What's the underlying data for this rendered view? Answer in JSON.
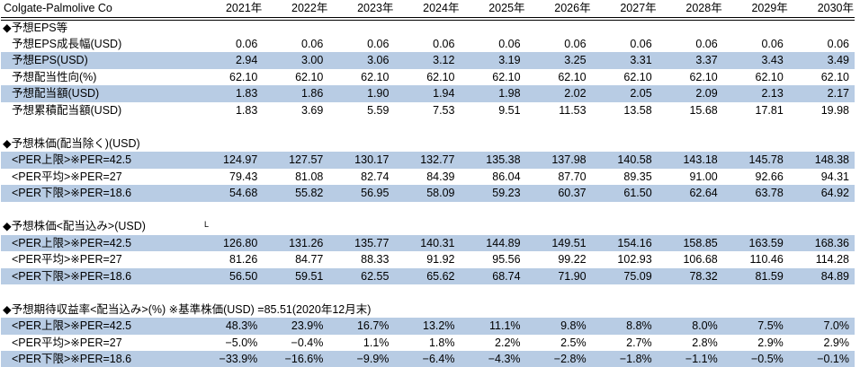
{
  "company": "Colgate-Palmolive Co",
  "years": [
    "2021年",
    "2022年",
    "2023年",
    "2024年",
    "2025年",
    "2026年",
    "2027年",
    "2028年",
    "2029年",
    "2030年"
  ],
  "colors": {
    "row_highlight": "#B8CCE4",
    "text": "#000000",
    "background": "#FFFFFF"
  },
  "sections": [
    {
      "title": "◆予想EPS等",
      "rows": [
        {
          "label": "予想EPS成長幅(USD)",
          "highlight": false,
          "values": [
            "0.06",
            "0.06",
            "0.06",
            "0.06",
            "0.06",
            "0.06",
            "0.06",
            "0.06",
            "0.06",
            "0.06"
          ]
        },
        {
          "label": "予想EPS(USD)",
          "highlight": true,
          "values": [
            "2.94",
            "3.00",
            "3.06",
            "3.12",
            "3.19",
            "3.25",
            "3.31",
            "3.37",
            "3.43",
            "3.49"
          ]
        },
        {
          "label": "予想配当性向(%)",
          "highlight": false,
          "values": [
            "62.10",
            "62.10",
            "62.10",
            "62.10",
            "62.10",
            "62.10",
            "62.10",
            "62.10",
            "62.10",
            "62.10"
          ]
        },
        {
          "label": "予想配当額(USD)",
          "highlight": true,
          "values": [
            "1.83",
            "1.86",
            "1.90",
            "1.94",
            "1.98",
            "2.02",
            "2.05",
            "2.09",
            "2.13",
            "2.17"
          ]
        },
        {
          "label": "予想累積配当額(USD)",
          "highlight": false,
          "values": [
            "1.83",
            "3.69",
            "5.59",
            "7.53",
            "9.51",
            "11.53",
            "13.58",
            "15.68",
            "17.81",
            "19.98"
          ]
        }
      ]
    },
    {
      "title": "◆予想株価(配当除く)(USD)",
      "rows": [
        {
          "label": "<PER上限>※PER=42.5",
          "highlight": true,
          "values": [
            "124.97",
            "127.57",
            "130.17",
            "132.77",
            "135.38",
            "137.98",
            "140.58",
            "143.18",
            "145.78",
            "148.38"
          ]
        },
        {
          "label": "<PER平均>※PER=27",
          "highlight": false,
          "values": [
            "79.43",
            "81.08",
            "82.74",
            "84.39",
            "86.04",
            "87.70",
            "89.35",
            "91.00",
            "92.66",
            "94.31"
          ]
        },
        {
          "label": "<PER下限>※PER=18.6",
          "highlight": true,
          "values": [
            "54.68",
            "55.82",
            "56.95",
            "58.09",
            "59.23",
            "60.37",
            "61.50",
            "62.64",
            "63.78",
            "64.92"
          ]
        }
      ]
    },
    {
      "title": "◆予想株価<配当込み>(USD)",
      "title_note": "L",
      "rows": [
        {
          "label": "<PER上限>※PER=42.5",
          "highlight": true,
          "values": [
            "126.80",
            "131.26",
            "135.77",
            "140.31",
            "144.89",
            "149.51",
            "154.16",
            "158.85",
            "163.59",
            "168.36"
          ]
        },
        {
          "label": "<PER平均>※PER=27",
          "highlight": false,
          "values": [
            "81.26",
            "84.77",
            "88.33",
            "91.92",
            "95.56",
            "99.22",
            "102.93",
            "106.68",
            "110.46",
            "114.28"
          ]
        },
        {
          "label": "<PER下限>※PER=18.6",
          "highlight": true,
          "values": [
            "56.50",
            "59.51",
            "62.55",
            "65.62",
            "68.74",
            "71.90",
            "75.09",
            "78.32",
            "81.59",
            "84.89"
          ]
        }
      ]
    },
    {
      "title": "◆予想期待収益率<配当込み>(%) ※基準株価(USD) =85.51(2020年12月末)",
      "rows": [
        {
          "label": "<PER上限>※PER=42.5",
          "highlight": true,
          "values": [
            "48.3%",
            "23.9%",
            "16.7%",
            "13.2%",
            "11.1%",
            "9.8%",
            "8.8%",
            "8.0%",
            "7.5%",
            "7.0%"
          ]
        },
        {
          "label": "<PER平均>※PER=27",
          "highlight": false,
          "values": [
            "−5.0%",
            "−0.4%",
            "1.1%",
            "1.8%",
            "2.2%",
            "2.5%",
            "2.7%",
            "2.8%",
            "2.9%",
            "2.9%"
          ]
        },
        {
          "label": "<PER下限>※PER=18.6",
          "highlight": true,
          "values": [
            "−33.9%",
            "−16.6%",
            "−9.9%",
            "−6.4%",
            "−4.3%",
            "−2.8%",
            "−1.8%",
            "−1.1%",
            "−0.5%",
            "−0.1%"
          ]
        }
      ]
    }
  ]
}
